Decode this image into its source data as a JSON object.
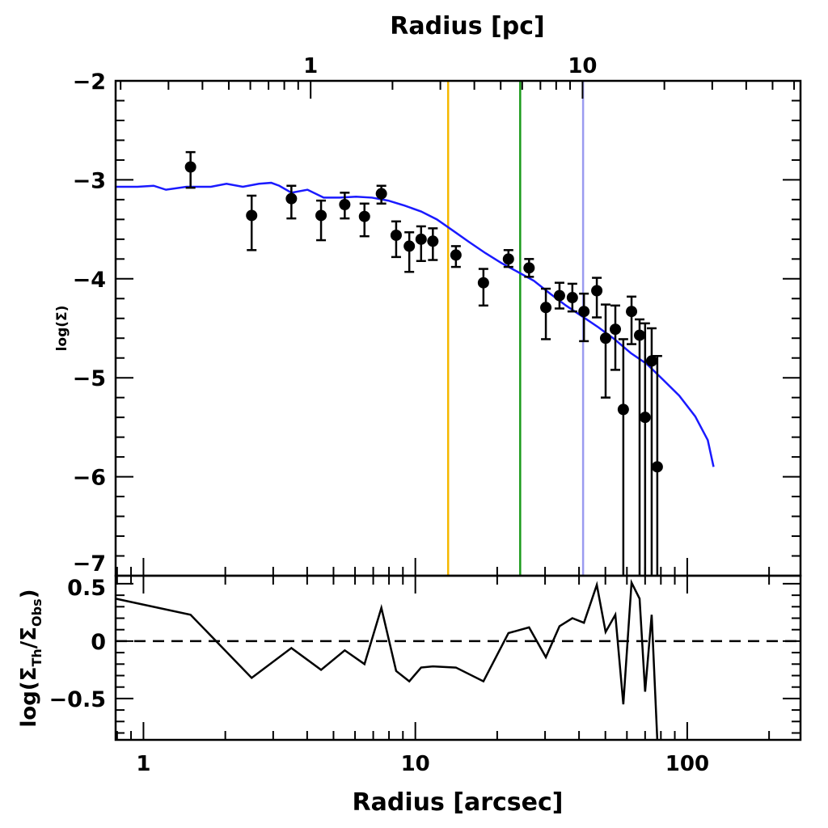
{
  "chart_data": [
    {
      "panel": "top",
      "type": "scatter",
      "xlabel_top": "Radius [pc]",
      "ylabel": "log(Σ)",
      "xscale": "log",
      "xlim": [
        0.79,
        261
      ],
      "ylim": [
        -7,
        -2
      ],
      "yticks": [
        "-2",
        "-3",
        "-4",
        "-5",
        "-6",
        "-7"
      ],
      "xticks_top": [
        "1",
        "10"
      ],
      "grid": false,
      "observed": {
        "color": "#000000",
        "x": [
          1.49,
          2.5,
          3.5,
          4.5,
          5.5,
          6.5,
          7.5,
          8.5,
          9.5,
          10.5,
          11.6,
          14.1,
          17.8,
          22.0,
          26.2,
          30.2,
          33.9,
          37.8,
          41.7,
          46.5,
          50.1,
          54.4,
          58.2,
          62.4,
          66.8,
          70.0,
          74.0,
          77.6
        ],
        "y": [
          -2.87,
          -3.36,
          -3.19,
          -3.36,
          -3.25,
          -3.37,
          -3.14,
          -3.56,
          -3.67,
          -3.6,
          -3.62,
          -3.76,
          -4.04,
          -3.8,
          -3.89,
          -4.29,
          -4.17,
          -4.19,
          -4.33,
          -4.12,
          -4.6,
          -4.51,
          -5.32,
          -4.33,
          -4.57,
          -5.4,
          -4.83,
          -5.9
        ],
        "y_err_high": [
          -2.72,
          -3.16,
          -3.06,
          -3.21,
          -3.13,
          -3.24,
          -3.06,
          -3.42,
          -3.53,
          -3.47,
          -3.49,
          -3.67,
          -3.9,
          -3.71,
          -3.8,
          -4.1,
          -4.04,
          -4.05,
          -4.15,
          -3.99,
          -4.26,
          -4.27,
          -4.61,
          -4.18,
          -4.41,
          -4.45,
          -4.5,
          -4.78
        ],
        "y_err_low": [
          -3.08,
          -3.71,
          -3.39,
          -3.61,
          -3.39,
          -3.57,
          -3.24,
          -3.78,
          -3.93,
          -3.82,
          -3.81,
          -3.88,
          -4.27,
          -3.88,
          -3.98,
          -4.61,
          -4.3,
          -4.33,
          -4.63,
          -4.39,
          -5.2,
          -4.92,
          -7,
          -4.66,
          -7,
          -7,
          -7,
          -7
        ]
      },
      "model": {
        "type": "line",
        "color": "#1a1aff",
        "x": [
          0.79,
          0.95,
          1.09,
          1.21,
          1.44,
          1.77,
          2.02,
          2.32,
          2.66,
          2.95,
          3.16,
          3.5,
          4.01,
          4.6,
          5.27,
          6.05,
          6.93,
          7.95,
          9.12,
          10.5,
          12.0,
          13.7,
          15.8,
          18.1,
          20.7,
          23.8,
          27.3,
          31.3,
          35.8,
          41.1,
          47.1,
          54.0,
          62.0,
          71.0,
          81.5,
          93.4,
          107,
          119,
          125
        ],
        "y": [
          -3.07,
          -3.07,
          -3.06,
          -3.1,
          -3.07,
          -3.07,
          -3.04,
          -3.07,
          -3.04,
          -3.03,
          -3.06,
          -3.13,
          -3.1,
          -3.18,
          -3.18,
          -3.17,
          -3.18,
          -3.21,
          -3.26,
          -3.32,
          -3.4,
          -3.51,
          -3.63,
          -3.74,
          -3.84,
          -3.93,
          -4.02,
          -4.15,
          -4.27,
          -4.38,
          -4.49,
          -4.61,
          -4.75,
          -4.86,
          -5.02,
          -5.18,
          -5.39,
          -5.63,
          -5.9
        ]
      },
      "vertical_lines": [
        {
          "x": 13.2,
          "color": "#f5b800"
        },
        {
          "x": 24.3,
          "color": "#1a9a1a"
        },
        {
          "x": 41.4,
          "color": "#9b9bf0"
        }
      ]
    },
    {
      "panel": "bottom",
      "type": "line",
      "xlabel": "Radius [arcsec]",
      "ylabel": "log(Σ_Th/Σ_Obs)",
      "ylabel_main": "log(Σ",
      "ylabel_sub1": "Th",
      "ylabel_mid": "/Σ",
      "ylabel_sub2": "Obs",
      "ylabel_end": ")",
      "xscale": "log",
      "xlim": [
        0.79,
        261
      ],
      "ylim": [
        -0.86,
        0.57
      ],
      "xticks": [
        "1",
        "10",
        "100"
      ],
      "yticks": [
        "0.5",
        "0",
        "-0.5"
      ],
      "reference_line": {
        "y": 0,
        "style": "dashed"
      },
      "residual": {
        "color": "#000000",
        "x": [
          0.79,
          1.49,
          2.5,
          3.5,
          4.5,
          5.5,
          6.5,
          7.5,
          8.5,
          9.5,
          10.5,
          11.6,
          14.1,
          17.8,
          22.0,
          26.2,
          30.2,
          33.9,
          37.8,
          41.7,
          46.5,
          50.1,
          54.4,
          58.2,
          62.4,
          66.8,
          70.0,
          74.0,
          77.6
        ],
        "y": [
          0.37,
          0.23,
          -0.32,
          -0.06,
          -0.25,
          -0.08,
          -0.2,
          0.29,
          -0.26,
          -0.35,
          -0.23,
          -0.22,
          -0.23,
          -0.35,
          0.07,
          0.12,
          -0.14,
          0.13,
          0.2,
          0.16,
          0.49,
          0.08,
          0.23,
          -0.55,
          0.51,
          0.37,
          -0.44,
          0.23,
          -0.86
        ]
      }
    }
  ]
}
